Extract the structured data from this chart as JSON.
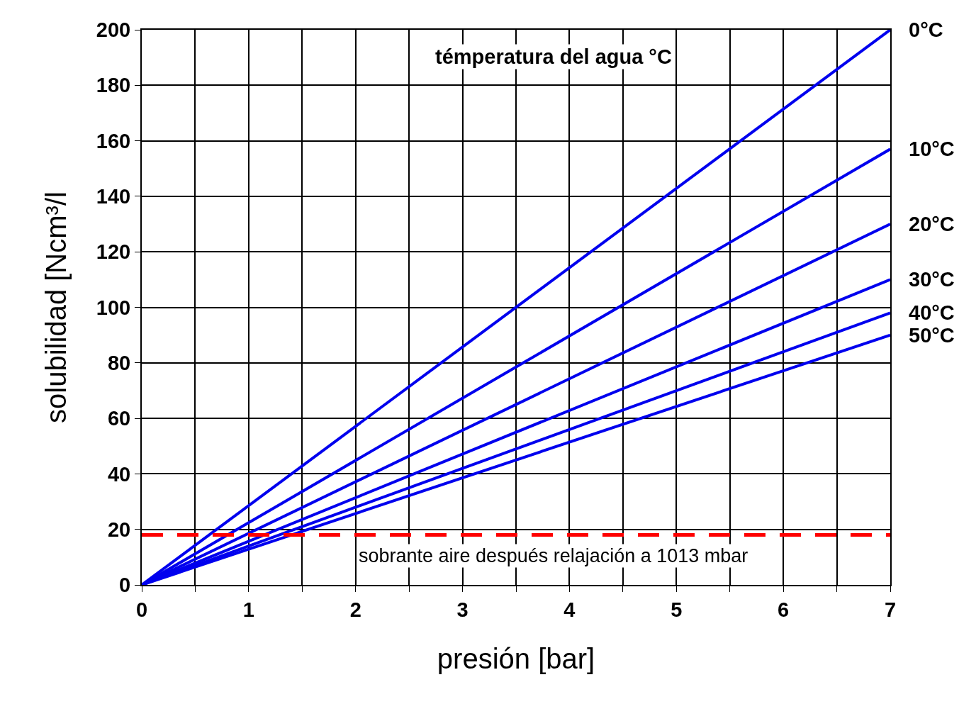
{
  "chart_data": {
    "type": "line",
    "xlabel": "presión [bar]",
    "ylabel": "solubilidad [Ncm³/l",
    "legend_title": "témperatura del agua °C",
    "x": [
      0,
      7
    ],
    "series": [
      {
        "name": "0°C",
        "color": "#0000ee",
        "values": [
          0,
          200
        ]
      },
      {
        "name": "10°C",
        "color": "#0000ee",
        "values": [
          0,
          157
        ]
      },
      {
        "name": "20°C",
        "color": "#0000ee",
        "values": [
          0,
          130
        ]
      },
      {
        "name": "30°C",
        "color": "#0000ee",
        "values": [
          0,
          110
        ]
      },
      {
        "name": "40°C",
        "color": "#0000ee",
        "values": [
          0,
          98
        ]
      },
      {
        "name": "50°C",
        "color": "#0000ee",
        "values": [
          0,
          90
        ]
      }
    ],
    "xlim": [
      0,
      7
    ],
    "xticks": [
      0,
      {
        "value": 0.5,
        "label": null
      },
      1,
      {
        "value": 1.5,
        "label": null
      },
      2,
      {
        "value": 2.5,
        "label": null
      },
      3,
      {
        "value": 3.5,
        "label": null
      },
      4,
      {
        "value": 4.5,
        "label": null
      },
      5,
      {
        "value": 5.5,
        "label": null
      },
      6,
      {
        "value": 6.5,
        "label": null
      },
      7
    ],
    "ylim": [
      0,
      200
    ],
    "yticks": [
      0,
      20,
      40,
      60,
      80,
      100,
      120,
      140,
      160,
      180,
      200
    ],
    "grid": true,
    "legend": false,
    "marker": "none",
    "line_style": "solid",
    "ref_lines": [
      {
        "axis": "y",
        "value": 18,
        "label": "sobrante aire después relajación a 1013 mbar",
        "color": "#ff0000",
        "line_style": "dashed"
      }
    ]
  }
}
